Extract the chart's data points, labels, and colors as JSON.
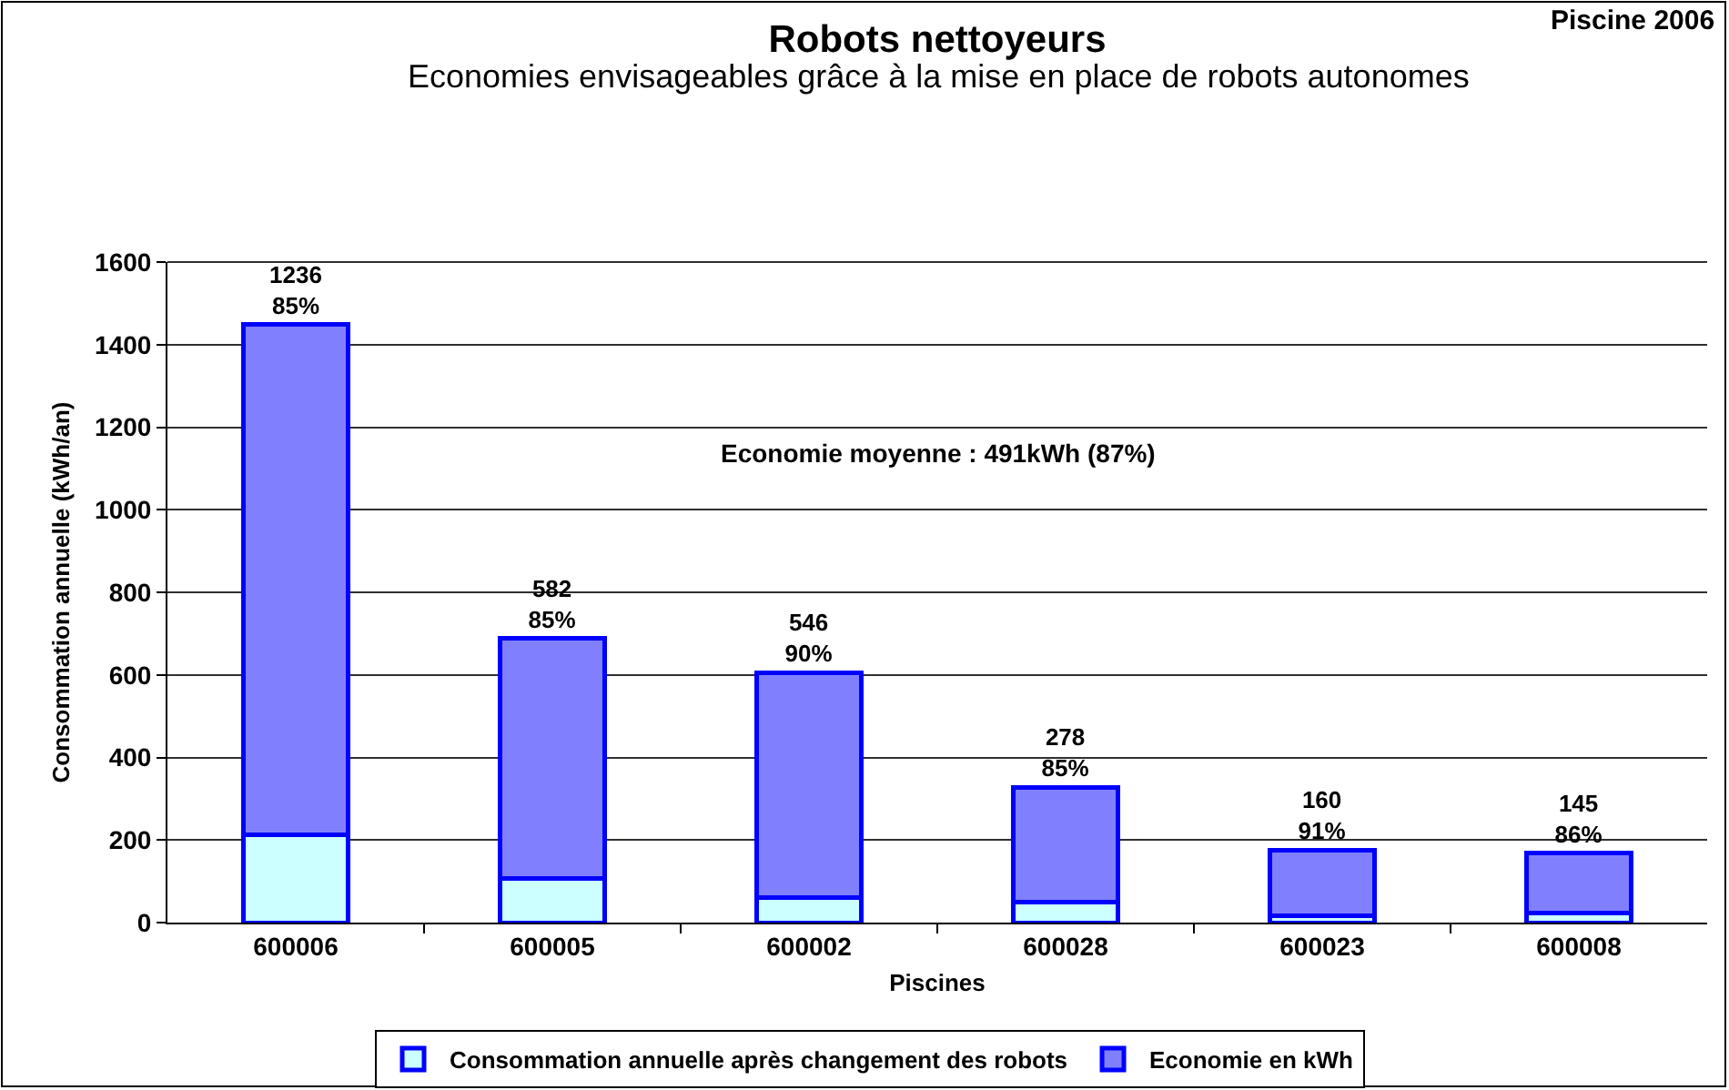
{
  "chart_data": {
    "type": "bar",
    "title": "Robots nettoyeurs",
    "subtitle": "Economies envisageables grâce à la mise en place de robots autonomes",
    "xlabel": "Piscines",
    "ylabel": "Consommation annuelle (kWh/an)",
    "annotations": [
      "Piscine 2006",
      "Economie moyenne : 491kWh (87%)"
    ],
    "categories": [
      "600006",
      "600005",
      "600002",
      "600028",
      "600023",
      "600008"
    ],
    "series": [
      {
        "name": "Consommation annuelle après changement des robots",
        "color": "#ccffff",
        "values": [
          212,
          106,
          60,
          50,
          16,
          23
        ]
      },
      {
        "name": "Economie en kWh",
        "color": "#8080ff",
        "values": [
          1236,
          582,
          546,
          278,
          160,
          145
        ],
        "value_labels": [
          "1236\n85%",
          "582\n85%",
          "546\n90%",
          "278\n85%",
          "160\n91%",
          "145\n86%"
        ]
      }
    ],
    "stacked": true,
    "ylim": [
      0,
      1600
    ],
    "yticks": [
      0,
      200,
      400,
      600,
      800,
      1000,
      1200,
      1400,
      1600
    ],
    "grid": "y",
    "legend": "bottom"
  }
}
